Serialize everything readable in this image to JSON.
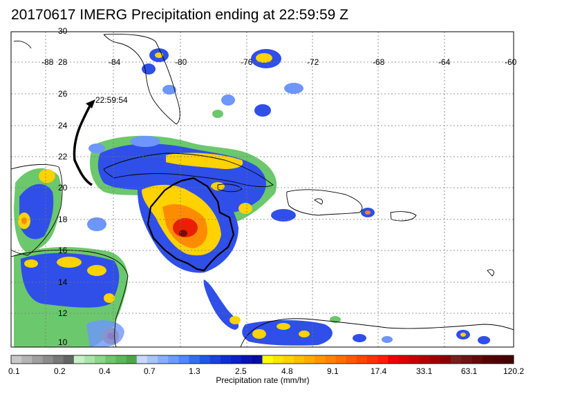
{
  "title": "20170617 IMERG Precipitation ending at 22:59:59 Z",
  "track_time_label": "22:59:54",
  "lon_labels": [
    "-88",
    "-84",
    "-80",
    "-76",
    "-72",
    "-68",
    "-64",
    "-60"
  ],
  "lat_labels": [
    "30",
    "28",
    "26",
    "24",
    "22",
    "20",
    "18",
    "16",
    "14",
    "12",
    "10"
  ],
  "colorbar": {
    "title": "Precipitation rate (mm/hr)",
    "tick_labels": [
      "0.1",
      "0.2",
      "0.4",
      "0.7",
      "1.3",
      "2.5",
      "4.8",
      "9.1",
      "17.4",
      "33.1",
      "63.1",
      "120.2"
    ],
    "colors": [
      "#c8c8c8",
      "#b4b4b4",
      "#a0a0a0",
      "#8c8c8c",
      "#787878",
      "#646464",
      "#c8f0c8",
      "#a8e6a8",
      "#88d888",
      "#6cc86c",
      "#5aba5a",
      "#48a848",
      "#c8d8ff",
      "#a8c4ff",
      "#88b0ff",
      "#6a9cff",
      "#4c88ff",
      "#3070f0",
      "#1c5ae6",
      "#1444dc",
      "#0c30d2",
      "#0a20c8",
      "#0814b4",
      "#060ca0",
      "#ffff00",
      "#ffe600",
      "#ffd200",
      "#ffbe00",
      "#ffaa00",
      "#ff9600",
      "#ff8200",
      "#ff6e00",
      "#ff5a00",
      "#ff4600",
      "#ff3200",
      "#ff1e00",
      "#f00000",
      "#dc0000",
      "#c80000",
      "#b40000",
      "#a00000",
      "#8c0000",
      "#781e1e",
      "#6e1414",
      "#640a0a",
      "#5a0000",
      "#500000",
      "#460000"
    ]
  },
  "colors": {
    "light_green": "#7ccd7c",
    "blue": "#2f4fe8",
    "light_blue": "#6d96ff",
    "yellow": "#ffe000",
    "orange": "#ff8c00",
    "red": "#e82000",
    "dark_red": "#7a0a0a",
    "outline": "#000000"
  }
}
